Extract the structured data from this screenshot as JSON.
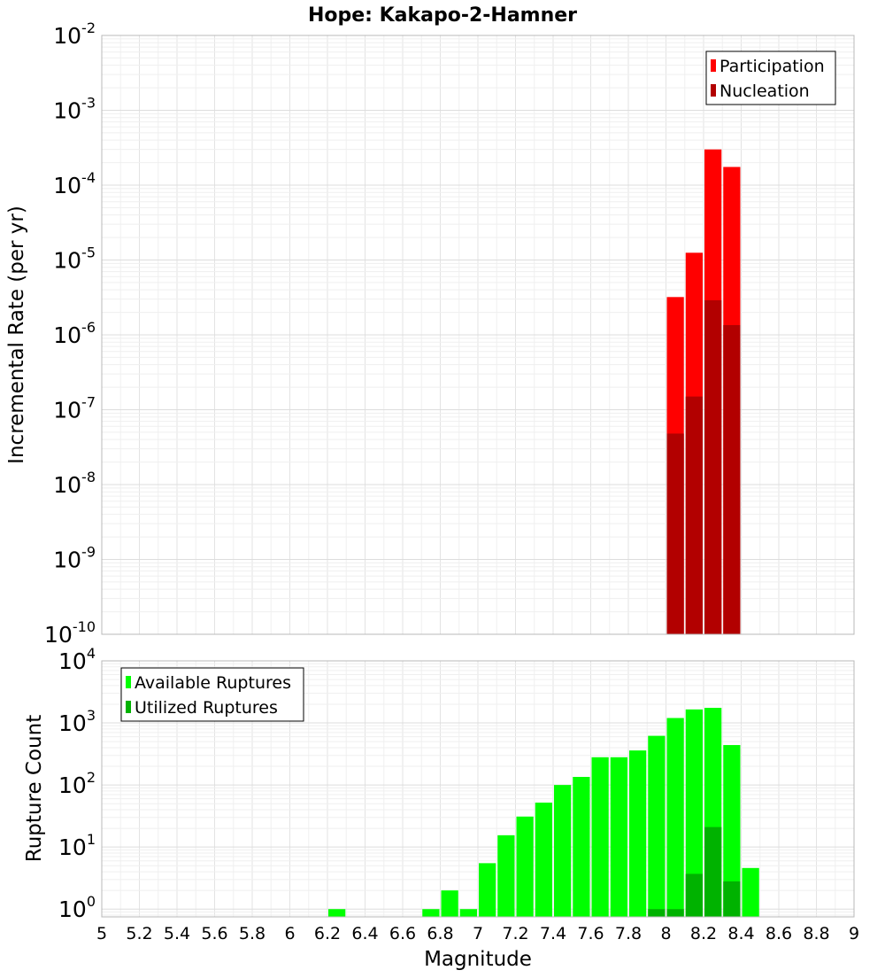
{
  "chart_data": [
    {
      "type": "bar",
      "title": "Hope: Kakapo-2-Hamner",
      "ylabel": "Incremental Rate (per yr)",
      "xlabel": "",
      "xlim": [
        5,
        9
      ],
      "ylim": [
        1e-10,
        0.01
      ],
      "yscale": "log",
      "ytick_exponents": [
        "-2",
        "-3",
        "-4",
        "-5",
        "-6",
        "-7",
        "-8",
        "-9",
        "-10"
      ],
      "grid": true,
      "legend_position": "top-right",
      "bar_width": 0.1,
      "series": [
        {
          "name": "Participation",
          "color": "#ff0000",
          "x": [
            8.05,
            8.15,
            8.25,
            8.35
          ],
          "values": [
            3.2e-06,
            1.25e-05,
            0.0003,
            0.000175
          ]
        },
        {
          "name": "Nucleation",
          "color": "#b20000",
          "x": [
            8.05,
            8.15,
            8.25,
            8.35
          ],
          "values": [
            4.8e-08,
            1.5e-07,
            2.9e-06,
            1.35e-06
          ]
        }
      ]
    },
    {
      "type": "bar",
      "ylabel": "Rupture Count",
      "xlabel": "Magnitude",
      "xlim": [
        5,
        9
      ],
      "ylim": [
        0.75,
        10000
      ],
      "yscale": "log",
      "ytick_exponents": [
        "4",
        "3",
        "2",
        "1",
        "0"
      ],
      "xtick_labels": [
        "5",
        "5.2",
        "5.4",
        "5.6",
        "5.8",
        "6",
        "6.2",
        "6.4",
        "6.6",
        "6.8",
        "7",
        "7.2",
        "7.4",
        "7.6",
        "7.8",
        "8",
        "8.2",
        "8.4",
        "8.6",
        "8.8",
        "9"
      ],
      "grid": true,
      "legend_position": "top-left",
      "bar_width": 0.1,
      "series": [
        {
          "name": "Available Ruptures",
          "color": "#00ff00",
          "x": [
            6.25,
            6.75,
            6.85,
            6.95,
            7.05,
            7.15,
            7.25,
            7.35,
            7.45,
            7.55,
            7.65,
            7.75,
            7.85,
            7.95,
            8.05,
            8.15,
            8.25,
            8.35,
            8.45
          ],
          "values": [
            1,
            1,
            2,
            1,
            5.5,
            15.5,
            31,
            52,
            100,
            135,
            280,
            280,
            360,
            620,
            1200,
            1650,
            1750,
            440,
            4.6
          ]
        },
        {
          "name": "Utilized Ruptures",
          "color": "#00b200",
          "x": [
            7.95,
            8.05,
            8.15,
            8.25,
            8.35
          ],
          "values": [
            1,
            1,
            3.7,
            21,
            2.8
          ]
        }
      ]
    }
  ]
}
